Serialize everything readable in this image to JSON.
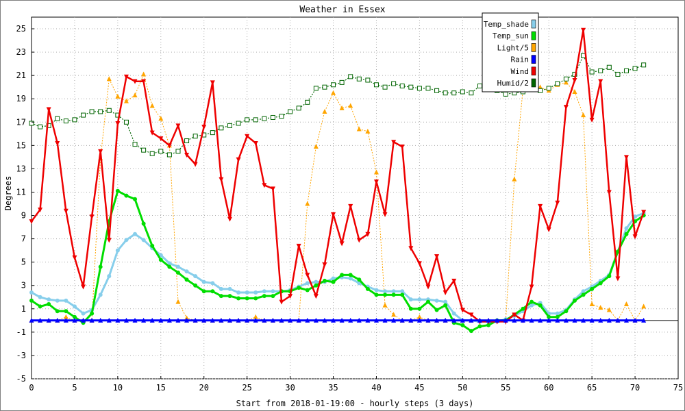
{
  "chart_data": {
    "type": "line",
    "title": "Weather in Essex",
    "xlabel": "Start from 2018-01-19:00 - hourly steps (3 days)",
    "ylabel": "Degrees",
    "xlim": [
      0,
      75
    ],
    "ylim": [
      -5,
      26
    ],
    "xticks": [
      0,
      5,
      10,
      15,
      20,
      25,
      30,
      35,
      40,
      45,
      50,
      55,
      60,
      65,
      70,
      75
    ],
    "yticks": [
      -5,
      -3,
      -1,
      1,
      3,
      5,
      7,
      9,
      11,
      13,
      15,
      17,
      19,
      21,
      23,
      25
    ],
    "grid": true,
    "legend_position": "top-right",
    "series": [
      {
        "name": "Temp_shade",
        "color": "#87ceeb",
        "values": [
          2.4,
          2.0,
          1.8,
          1.7,
          1.7,
          1.2,
          0.6,
          0.9,
          2.2,
          3.8,
          6.0,
          6.9,
          7.4,
          6.9,
          6.2,
          5.6,
          4.9,
          4.6,
          4.2,
          3.8,
          3.3,
          3.2,
          2.7,
          2.7,
          2.4,
          2.4,
          2.4,
          2.5,
          2.5,
          2.5,
          2.6,
          2.9,
          3.2,
          3.3,
          3.3,
          3.6,
          3.7,
          3.6,
          3.2,
          2.9,
          2.6,
          2.5,
          2.5,
          2.5,
          1.8,
          1.8,
          1.8,
          1.7,
          1.6,
          0.6,
          0.0,
          0.0,
          -0.1,
          -0.1,
          -0.1,
          0.1,
          0.4,
          0.8,
          1.3,
          1.5,
          0.6,
          0.6,
          0.9,
          1.8,
          2.5,
          2.9,
          3.4,
          3.9,
          5.9,
          7.9,
          8.9,
          9.2
        ]
      },
      {
        "name": "Temp_sun",
        "color": "#00dd00",
        "values": [
          1.7,
          1.2,
          1.4,
          0.8,
          0.8,
          0.3,
          -0.2,
          0.6,
          4.6,
          8.5,
          11.1,
          10.7,
          10.4,
          8.3,
          6.4,
          5.2,
          4.6,
          4.1,
          3.5,
          3.0,
          2.5,
          2.5,
          2.1,
          2.1,
          1.9,
          1.9,
          1.9,
          2.1,
          2.1,
          2.5,
          2.5,
          2.8,
          2.6,
          3.0,
          3.4,
          3.3,
          3.9,
          3.9,
          3.5,
          2.7,
          2.2,
          2.2,
          2.2,
          2.2,
          1.0,
          1.0,
          1.6,
          0.9,
          1.3,
          -0.2,
          -0.4,
          -0.9,
          -0.5,
          -0.4,
          0.0,
          0.0,
          0.5,
          1.0,
          1.6,
          1.3,
          0.3,
          0.3,
          0.8,
          1.7,
          2.2,
          2.7,
          3.2,
          3.8,
          5.9,
          7.4,
          8.5,
          9.0
        ]
      },
      {
        "name": "Light/5",
        "color": "#ffa500",
        "values": [
          0.0,
          0.0,
          0.0,
          0.0,
          0.3,
          0.0,
          0.0,
          0.0,
          13.9,
          20.7,
          19.2,
          18.8,
          19.3,
          21.1,
          18.4,
          17.3,
          15.0,
          1.6,
          0.2,
          0.0,
          0.0,
          0.0,
          0.0,
          0.0,
          0.0,
          0.0,
          0.3,
          0.0,
          0.0,
          0.0,
          0.0,
          0.0,
          10.0,
          14.9,
          17.9,
          19.5,
          18.2,
          18.4,
          16.4,
          16.2,
          12.7,
          1.3,
          0.5,
          0.0,
          0.0,
          0.3,
          0.0,
          0.0,
          0.0,
          0.0,
          0.0,
          0.0,
          0.0,
          0.0,
          0.0,
          0.0,
          12.1,
          19.8,
          20.1,
          20.0,
          19.7,
          20.2,
          20.4,
          19.6,
          17.6,
          1.4,
          1.1,
          0.9,
          0.0,
          1.4,
          0.0,
          1.2
        ]
      },
      {
        "name": "Rain",
        "color": "#0000ff",
        "values": [
          0,
          0,
          0,
          0,
          0,
          0,
          0,
          0,
          0,
          0,
          0,
          0,
          0,
          0,
          0,
          0,
          0,
          0,
          0,
          0,
          0,
          0,
          0,
          0,
          0,
          0,
          0,
          0,
          0,
          0,
          0,
          0,
          0,
          0,
          0,
          0,
          0,
          0,
          0,
          0,
          0,
          0,
          0,
          0,
          0,
          0,
          0,
          0,
          0,
          0,
          0,
          0,
          0,
          0,
          0,
          0,
          0,
          0,
          0,
          0,
          0,
          0,
          0,
          0,
          0,
          0,
          0,
          0,
          0,
          0,
          0,
          0
        ]
      },
      {
        "name": "Wind",
        "color": "#ee0000",
        "values": [
          8.5,
          9.5,
          18.1,
          15.2,
          9.4,
          5.4,
          2.9,
          8.9,
          14.5,
          6.9,
          16.9,
          20.9,
          20.5,
          20.5,
          16.1,
          15.6,
          15.0,
          16.7,
          14.2,
          13.4,
          16.6,
          20.4,
          12.1,
          8.7,
          13.8,
          15.8,
          15.2,
          11.6,
          11.3,
          1.6,
          2.1,
          6.4,
          3.9,
          2.1,
          4.8,
          9.1,
          6.6,
          9.8,
          6.9,
          7.4,
          11.9,
          9.1,
          15.3,
          14.9,
          6.2,
          4.9,
          2.9,
          5.5,
          2.4,
          3.4,
          0.9,
          0.5,
          -0.1,
          -0.1,
          -0.1,
          -0.1,
          0.5,
          0.0,
          2.9,
          9.8,
          7.8,
          10.1,
          18.3,
          20.6,
          24.9,
          17.2,
          20.5,
          11.0,
          3.6,
          14.0,
          7.2,
          9.3
        ]
      },
      {
        "name": "Humid/2",
        "color": "#006400",
        "values": [
          16.9,
          16.6,
          16.7,
          17.3,
          17.1,
          17.2,
          17.6,
          17.9,
          17.9,
          18.0,
          17.6,
          17.0,
          15.1,
          14.6,
          14.3,
          14.5,
          14.2,
          14.5,
          15.4,
          15.8,
          15.9,
          16.1,
          16.5,
          16.7,
          16.9,
          17.2,
          17.2,
          17.3,
          17.4,
          17.5,
          17.9,
          18.2,
          18.7,
          19.9,
          20.0,
          20.2,
          20.4,
          20.9,
          20.7,
          20.6,
          20.2,
          20.0,
          20.3,
          20.1,
          20.0,
          19.9,
          19.9,
          19.7,
          19.5,
          19.5,
          19.6,
          19.5,
          20.1,
          19.9,
          19.7,
          19.4,
          19.5,
          19.6,
          19.8,
          19.7,
          19.9,
          20.3,
          20.7,
          21.1,
          22.7,
          21.3,
          21.4,
          21.7,
          21.1,
          21.4,
          21.6,
          21.9
        ]
      }
    ]
  }
}
